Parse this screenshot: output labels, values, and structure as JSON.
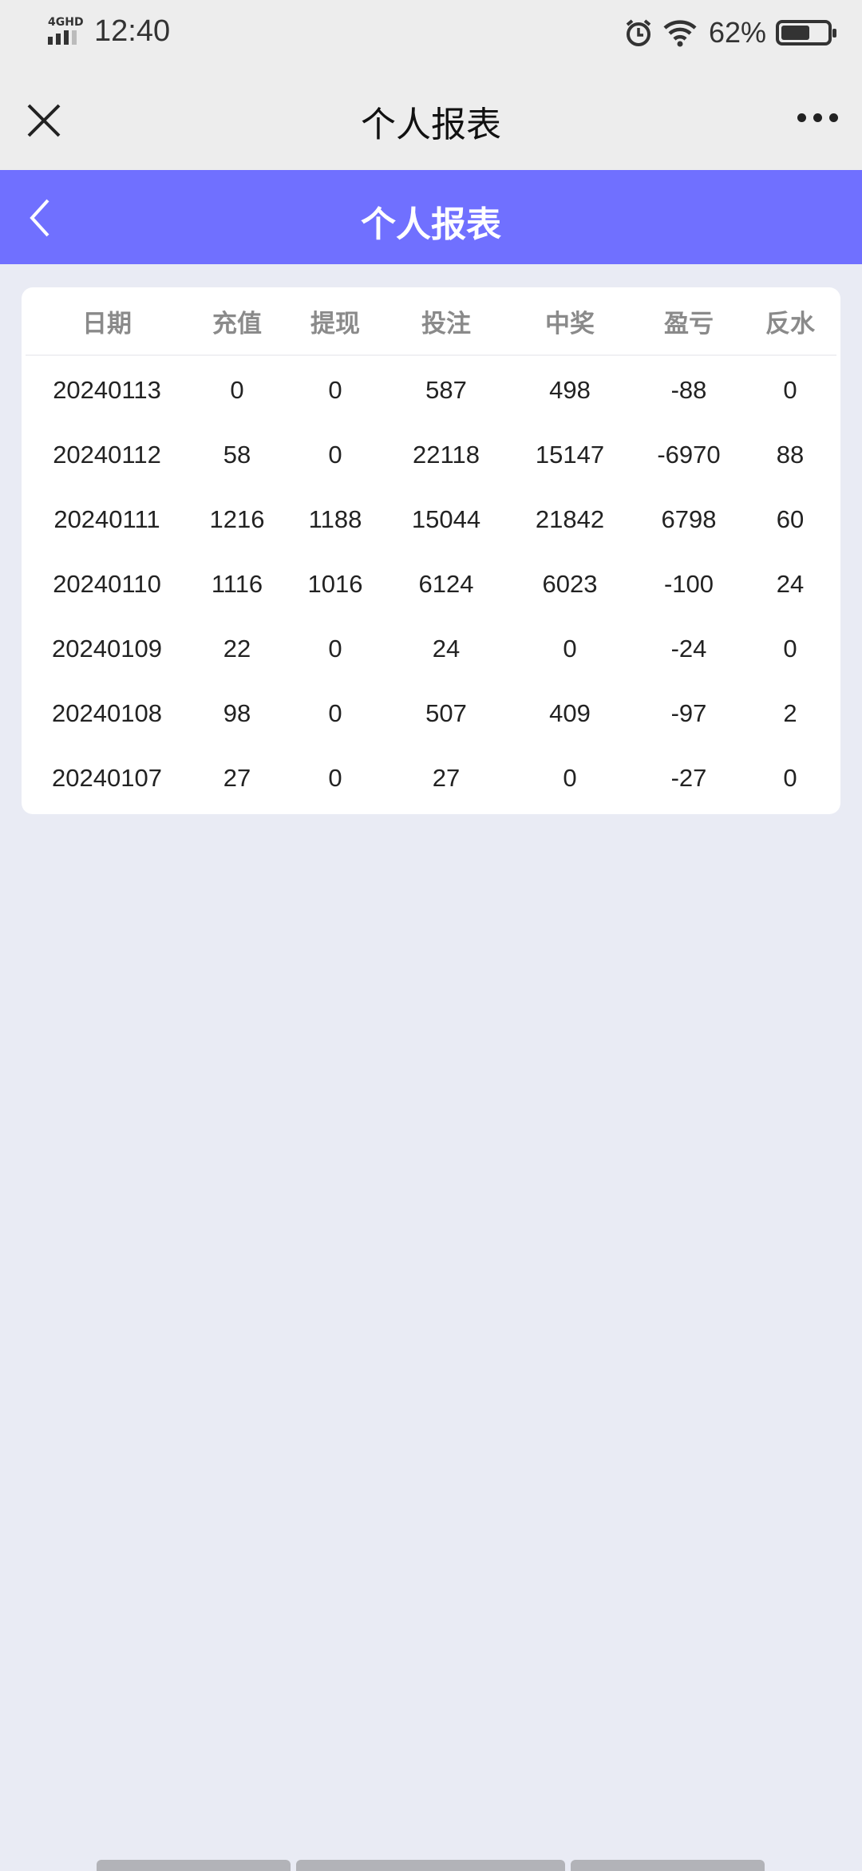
{
  "status_bar": {
    "network": "4GHD",
    "time": "12:40",
    "battery": "62%",
    "battery_level": 62,
    "icons": [
      "signal-icon",
      "alarm-icon",
      "wifi-icon",
      "battery-icon"
    ]
  },
  "nav": {
    "title": "个人报表",
    "close_icon": "close-icon",
    "more_icon": "more-icon"
  },
  "header": {
    "title": "个人报表",
    "back_icon": "chevron-left-icon",
    "color": "#7070ff"
  },
  "table": {
    "columns": [
      "日期",
      "充值",
      "提现",
      "投注",
      "中奖",
      "盈亏",
      "反水"
    ],
    "rows": [
      [
        "20240113",
        "0",
        "0",
        "587",
        "498",
        "-88",
        "0"
      ],
      [
        "20240112",
        "58",
        "0",
        "22118",
        "15147",
        "-6970",
        "88"
      ],
      [
        "20240111",
        "1216",
        "1188",
        "15044",
        "21842",
        "6798",
        "60"
      ],
      [
        "20240110",
        "1116",
        "1016",
        "6124",
        "6023",
        "-100",
        "24"
      ],
      [
        "20240109",
        "22",
        "0",
        "24",
        "0",
        "-24",
        "0"
      ],
      [
        "20240108",
        "98",
        "0",
        "507",
        "409",
        "-97",
        "2"
      ],
      [
        "20240107",
        "27",
        "0",
        "27",
        "0",
        "-27",
        "0"
      ]
    ]
  }
}
